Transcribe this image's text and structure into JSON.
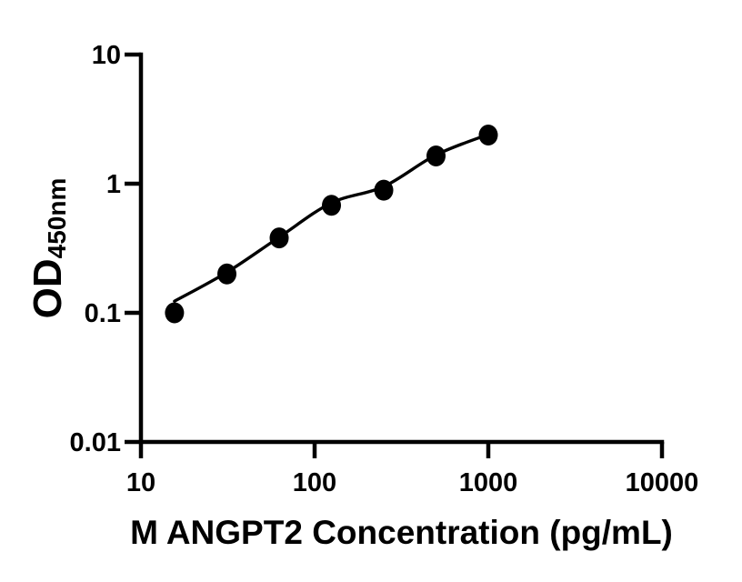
{
  "figure": {
    "background_color": "#ffffff",
    "ink_color": "#000000"
  },
  "chart_data": {
    "type": "scatter",
    "title": "",
    "xlabel": "M ANGPT2 Concentration (pg/mL)",
    "ylabel": "OD450nm",
    "ylabel_main": "OD",
    "ylabel_sub": "450nm",
    "x_scale": "log",
    "y_scale": "log",
    "xlim": [
      10,
      10000
    ],
    "ylim": [
      0.01,
      10
    ],
    "grid": false,
    "legend_position": "none",
    "x_ticks": [
      {
        "value": 10,
        "label": "10"
      },
      {
        "value": 100,
        "label": "100"
      },
      {
        "value": 1000,
        "label": "1000"
      },
      {
        "value": 10000,
        "label": "10000"
      }
    ],
    "y_ticks": [
      {
        "value": 10,
        "label": "10"
      },
      {
        "value": 1,
        "label": "1"
      },
      {
        "value": 0.1,
        "label": "0.1"
      },
      {
        "value": 0.01,
        "label": "0.01"
      }
    ],
    "series": [
      {
        "name": "standard-points",
        "marker": "filled-circle",
        "color": "#000000",
        "points": [
          {
            "x": 15.6,
            "y": 0.1
          },
          {
            "x": 31.25,
            "y": 0.2
          },
          {
            "x": 62.5,
            "y": 0.38
          },
          {
            "x": 125,
            "y": 0.68
          },
          {
            "x": 250,
            "y": 0.89
          },
          {
            "x": 500,
            "y": 1.64
          },
          {
            "x": 1000,
            "y": 2.38
          }
        ]
      }
    ],
    "fit_curve": {
      "name": "fit-line",
      "color": "#000000",
      "points": [
        {
          "x": 15.6,
          "y": 0.123
        },
        {
          "x": 31.25,
          "y": 0.206
        },
        {
          "x": 62.5,
          "y": 0.385
        },
        {
          "x": 125,
          "y": 0.71
        },
        {
          "x": 250,
          "y": 0.95
        },
        {
          "x": 500,
          "y": 1.67
        },
        {
          "x": 1000,
          "y": 2.41
        }
      ]
    }
  }
}
